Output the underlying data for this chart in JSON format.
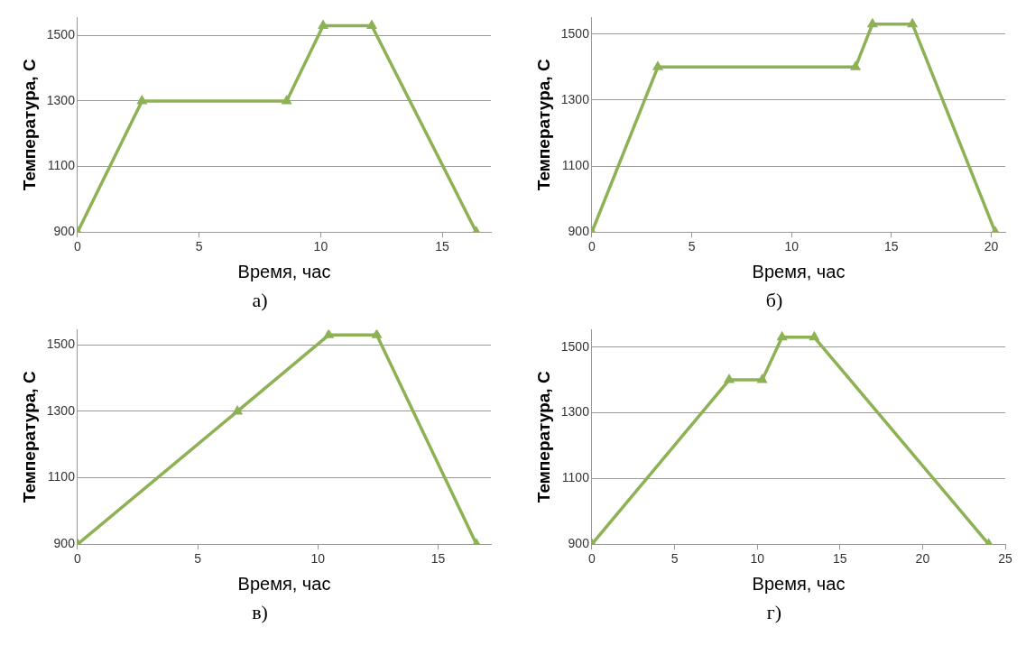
{
  "chart_data": [
    {
      "type": "line",
      "xlabel": "Время, час",
      "ylabel": "Температура, С",
      "annotations": [
        "а)"
      ],
      "x": [
        0,
        2.65,
        8.6,
        10.1,
        12.1,
        16.4
      ],
      "series": [
        {
          "color": "#8db255",
          "values": [
            900,
            1300,
            1300,
            1530,
            1530,
            900
          ]
        }
      ],
      "xlim": [
        0,
        17
      ],
      "xticks": [
        0,
        5,
        10,
        15
      ],
      "ylim": [
        900,
        1555
      ],
      "yticks": [
        900,
        1100,
        1300,
        1500
      ],
      "grid": "y",
      "marker": "triangle",
      "line_style": "solid"
    },
    {
      "type": "line",
      "xlabel": "Время, час",
      "ylabel": "Температура, С",
      "annotations": [
        "б)"
      ],
      "x": [
        0,
        3.3,
        13.2,
        14.05,
        16.05,
        20.2
      ],
      "series": [
        {
          "color": "#8db255",
          "values": [
            900,
            1400,
            1400,
            1530,
            1530,
            900
          ]
        }
      ],
      "xlim": [
        0,
        20.7
      ],
      "xticks": [
        0,
        5,
        10,
        15,
        20
      ],
      "ylim": [
        900,
        1550
      ],
      "yticks": [
        900,
        1100,
        1300,
        1500
      ],
      "grid": "y",
      "marker": "triangle",
      "line_style": "solid"
    },
    {
      "type": "line",
      "xlabel": "Время, час",
      "ylabel": "Температура, С",
      "annotations": [
        "в)"
      ],
      "x": [
        0,
        6.65,
        10.45,
        12.45,
        16.6
      ],
      "series": [
        {
          "color": "#8db255",
          "values": [
            900,
            1300,
            1530,
            1530,
            900
          ]
        }
      ],
      "xlim": [
        0,
        17.2
      ],
      "xticks": [
        0,
        5,
        10,
        15
      ],
      "ylim": [
        900,
        1546
      ],
      "yticks": [
        900,
        1100,
        1300,
        1500
      ],
      "grid": "y",
      "marker": "triangle",
      "line_style": "solid"
    },
    {
      "type": "line",
      "xlabel": "Время, час",
      "ylabel": "Температура, С",
      "annotations": [
        "г)"
      ],
      "x": [
        0,
        8.3,
        10.3,
        11.5,
        13.45,
        24
      ],
      "series": [
        {
          "color": "#8db255",
          "values": [
            900,
            1400,
            1400,
            1530,
            1530,
            900
          ]
        }
      ],
      "xlim": [
        0,
        25
      ],
      "xticks": [
        0,
        5,
        10,
        15,
        20,
        25
      ],
      "ylim": [
        900,
        1553
      ],
      "yticks": [
        900,
        1100,
        1300,
        1500
      ],
      "grid": "y",
      "marker": "triangle",
      "line_style": "solid"
    }
  ]
}
